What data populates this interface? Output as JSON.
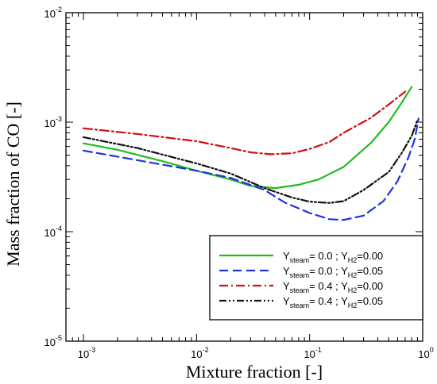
{
  "chart_data": {
    "type": "line",
    "xscale": "log",
    "yscale": "log",
    "xlim": [
      0.0007,
      1
    ],
    "ylim": [
      1e-05,
      0.01
    ],
    "xlabel": "Mixture fraction [-]",
    "ylabel": "Mass fraction of CO [-]",
    "xticks": [
      {
        "value": 0.001,
        "base": "10",
        "exp": "-3"
      },
      {
        "value": 0.01,
        "base": "10",
        "exp": "-2"
      },
      {
        "value": 0.1,
        "base": "10",
        "exp": "-1"
      },
      {
        "value": 1,
        "base": "10",
        "exp": "0"
      }
    ],
    "yticks": [
      {
        "value": 1e-05,
        "base": "10",
        "exp": "-5"
      },
      {
        "value": 0.0001,
        "base": "10",
        "exp": "-4"
      },
      {
        "value": 0.001,
        "base": "10",
        "exp": "-3"
      },
      {
        "value": 0.01,
        "base": "10",
        "exp": "-2"
      }
    ],
    "grid": false,
    "legend_position": "bottom-right",
    "series": [
      {
        "ysteam": "0.0",
        "yh2": "0.00",
        "color": "#22bb22",
        "dash": "solid",
        "points": [
          [
            0.001,
            0.00064
          ],
          [
            0.002,
            0.00056
          ],
          [
            0.005,
            0.00044
          ],
          [
            0.01,
            0.00036
          ],
          [
            0.02,
            0.0003
          ],
          [
            0.03,
            0.000262
          ],
          [
            0.05,
            0.00025
          ],
          [
            0.08,
            0.000268
          ],
          [
            0.12,
            0.0003
          ],
          [
            0.2,
            0.00039
          ],
          [
            0.35,
            0.00065
          ],
          [
            0.5,
            0.001
          ],
          [
            0.65,
            0.0015
          ],
          [
            0.8,
            0.0021
          ]
        ]
      },
      {
        "ysteam": "0.0",
        "yh2": "0.05",
        "color": "#2233dd",
        "dash": "dashed",
        "points": [
          [
            0.001,
            0.00055
          ],
          [
            0.003,
            0.00045
          ],
          [
            0.01,
            0.00036
          ],
          [
            0.02,
            0.00031
          ],
          [
            0.04,
            0.00024
          ],
          [
            0.06,
            0.000185
          ],
          [
            0.1,
            0.000148
          ],
          [
            0.15,
            0.00013
          ],
          [
            0.2,
            0.000128
          ],
          [
            0.3,
            0.00014
          ],
          [
            0.45,
            0.00019
          ],
          [
            0.6,
            0.00029
          ],
          [
            0.75,
            0.00048
          ],
          [
            0.85,
            0.0007
          ],
          [
            0.92,
            0.00108
          ]
        ]
      },
      {
        "ysteam": "0.4",
        "yh2": "0.00",
        "color": "#cc1111",
        "dash": "dashdot",
        "points": [
          [
            0.001,
            0.00088
          ],
          [
            0.003,
            0.00078
          ],
          [
            0.01,
            0.00067
          ],
          [
            0.02,
            0.00058
          ],
          [
            0.03,
            0.00053
          ],
          [
            0.045,
            0.00051
          ],
          [
            0.07,
            0.00052
          ],
          [
            0.1,
            0.00057
          ],
          [
            0.15,
            0.00066
          ],
          [
            0.2,
            0.0008
          ],
          [
            0.35,
            0.0011
          ],
          [
            0.5,
            0.00145
          ],
          [
            0.7,
            0.0019
          ]
        ]
      },
      {
        "ysteam": "0.4",
        "yh2": "0.05",
        "color": "#111111",
        "dash": "dashdotdot",
        "points": [
          [
            0.001,
            0.00073
          ],
          [
            0.003,
            0.00058
          ],
          [
            0.01,
            0.00042
          ],
          [
            0.02,
            0.00034
          ],
          [
            0.04,
            0.00025
          ],
          [
            0.07,
            0.000205
          ],
          [
            0.1,
            0.000188
          ],
          [
            0.15,
            0.000183
          ],
          [
            0.2,
            0.00019
          ],
          [
            0.3,
            0.00024
          ],
          [
            0.5,
            0.00035
          ],
          [
            0.65,
            0.00052
          ],
          [
            0.8,
            0.00075
          ],
          [
            0.9,
            0.00105
          ]
        ]
      }
    ]
  }
}
